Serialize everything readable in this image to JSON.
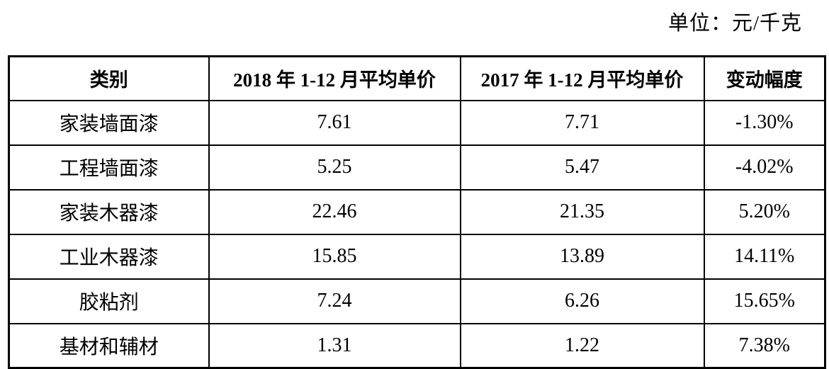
{
  "unit_label": "单位：元/千克",
  "table": {
    "columns": [
      {
        "label": "类别"
      },
      {
        "label": "2018 年 1-12 月平均单价"
      },
      {
        "label": "2017 年 1-12 月平均单价"
      },
      {
        "label": "变动幅度"
      }
    ],
    "rows": [
      {
        "category": "家装墙面漆",
        "avg_price_2018": "7.61",
        "avg_price_2017": "7.71",
        "change": "-1.30%"
      },
      {
        "category": "工程墙面漆",
        "avg_price_2018": "5.25",
        "avg_price_2017": "5.47",
        "change": "-4.02%"
      },
      {
        "category": "家装木器漆",
        "avg_price_2018": "22.46",
        "avg_price_2017": "21.35",
        "change": "5.20%"
      },
      {
        "category": "工业木器漆",
        "avg_price_2018": "15.85",
        "avg_price_2017": "13.89",
        "change": "14.11%"
      },
      {
        "category": "胶粘剂",
        "avg_price_2018": "7.24",
        "avg_price_2017": "6.26",
        "change": "15.65%"
      },
      {
        "category": "基材和辅材",
        "avg_price_2018": "1.31",
        "avg_price_2017": "1.22",
        "change": "7.38%"
      }
    ]
  },
  "colors": {
    "text": "#000000",
    "border": "#000000",
    "background": "#ffffff"
  }
}
